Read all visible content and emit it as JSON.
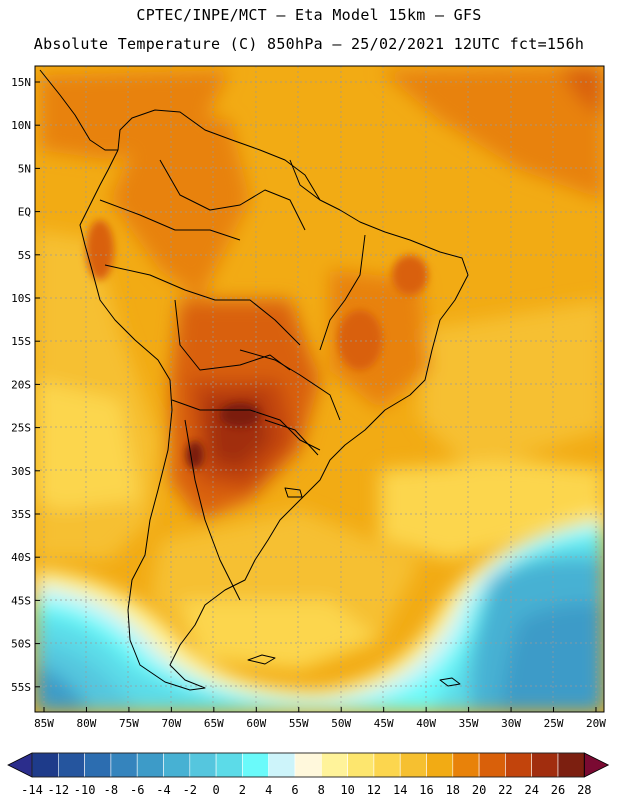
{
  "title": {
    "line1": "CPTEC/INPE/MCT —  Eta Model 15km — GFS",
    "line2": "Absolute Temperature (C) 850hPa — 25/02/2021 12UTC fct=156h"
  },
  "map": {
    "lat_labels": [
      "15N",
      "10N",
      "5N",
      "EQ",
      "5S",
      "10S",
      "15S",
      "20S",
      "25S",
      "30S",
      "35S",
      "40S",
      "45S",
      "50S",
      "55S"
    ],
    "lon_labels": [
      "85W",
      "80W",
      "75W",
      "70W",
      "65W",
      "60W",
      "55W",
      "50W",
      "45W",
      "40W",
      "35W",
      "30W",
      "25W",
      "20W"
    ],
    "lat_range": [
      15,
      -55
    ],
    "lon_range": [
      -85,
      -20
    ]
  },
  "colorbar": {
    "labels": [
      "-14",
      "-12",
      "-10",
      "-8",
      "-6",
      "-4",
      "-2",
      "0",
      "2",
      "4",
      "6",
      "8",
      "10",
      "12",
      "14",
      "16",
      "18",
      "20",
      "22",
      "24",
      "26",
      "28"
    ],
    "colors": [
      "#1e3b8a",
      "#25559e",
      "#2c6db0",
      "#3584bd",
      "#3d9bc8",
      "#47b1d3",
      "#55c6de",
      "#5cdbe8",
      "#6afafa",
      "#cdf4fa",
      "#fff8dc",
      "#fff39a",
      "#fde66e",
      "#fcd64e",
      "#f6c030",
      "#f2ab14",
      "#e8820a",
      "#d9600a",
      "#c2440c",
      "#a12d0e",
      "#7c1f10"
    ],
    "under_color": "#2b2d8c",
    "over_color": "#7a0a32"
  }
}
